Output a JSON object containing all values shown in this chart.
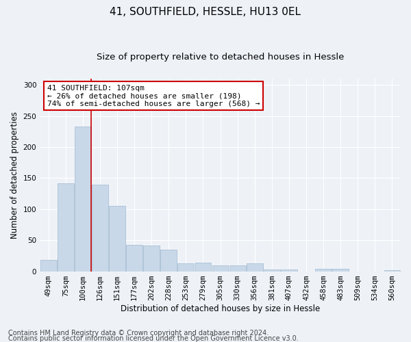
{
  "title1": "41, SOUTHFIELD, HESSLE, HU13 0EL",
  "title2": "Size of property relative to detached houses in Hessle",
  "xlabel": "Distribution of detached houses by size in Hessle",
  "ylabel": "Number of detached properties",
  "categories": [
    "49sqm",
    "75sqm",
    "100sqm",
    "126sqm",
    "151sqm",
    "177sqm",
    "202sqm",
    "228sqm",
    "253sqm",
    "279sqm",
    "305sqm",
    "330sqm",
    "356sqm",
    "381sqm",
    "407sqm",
    "432sqm",
    "458sqm",
    "483sqm",
    "509sqm",
    "534sqm",
    "560sqm"
  ],
  "values": [
    18,
    142,
    233,
    140,
    105,
    42,
    41,
    35,
    13,
    14,
    9,
    9,
    13,
    3,
    3,
    0,
    4,
    4,
    0,
    0,
    2
  ],
  "bar_color": "#c8d8e8",
  "bar_edge_color": "#a0b8d0",
  "red_line_index": 2,
  "annotation_line1": "41 SOUTHFIELD: 107sqm",
  "annotation_line2": "← 26% of detached houses are smaller (198)",
  "annotation_line3": "74% of semi-detached houses are larger (568) →",
  "annotation_box_color": "#ffffff",
  "annotation_edge_color": "#cc0000",
  "footer1": "Contains HM Land Registry data © Crown copyright and database right 2024.",
  "footer2": "Contains public sector information licensed under the Open Government Licence v3.0.",
  "ylim": [
    0,
    310
  ],
  "background_color": "#eef2f7",
  "plot_bg_color": "#eef2f7",
  "grid_color": "#ffffff",
  "title1_fontsize": 11,
  "title2_fontsize": 9.5,
  "axis_label_fontsize": 8.5,
  "tick_fontsize": 7.5,
  "footer_fontsize": 7,
  "annotation_fontsize": 8
}
